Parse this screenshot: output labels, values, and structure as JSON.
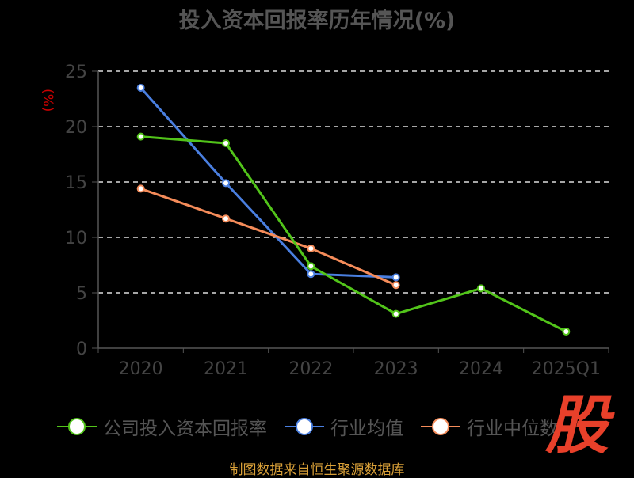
{
  "chart_data": {
    "type": "line",
    "title": "投入资本回报率历年情况(%)",
    "ylabel": "(%)",
    "xlabel": "",
    "categories": [
      "2020",
      "2021",
      "2022",
      "2023",
      "2024",
      "2025Q1"
    ],
    "ylim": [
      0,
      25
    ],
    "yticks": [
      0,
      5,
      10,
      15,
      20,
      25
    ],
    "grid": true,
    "legend_position": "bottom",
    "series": [
      {
        "name": "公司投入资本回报率",
        "color": "#52c41a",
        "values": [
          19.1,
          18.5,
          7.4,
          3.1,
          5.4,
          1.5
        ]
      },
      {
        "name": "行业均值",
        "color": "#4a7fe0",
        "values": [
          23.5,
          14.9,
          6.7,
          6.4,
          null,
          null
        ]
      },
      {
        "name": "行业中位数",
        "color": "#f58c5a",
        "values": [
          14.4,
          11.7,
          9.0,
          5.7,
          null,
          null
        ]
      }
    ]
  },
  "logo_text": "股",
  "source": "制图数据来自恒生聚源数据库"
}
